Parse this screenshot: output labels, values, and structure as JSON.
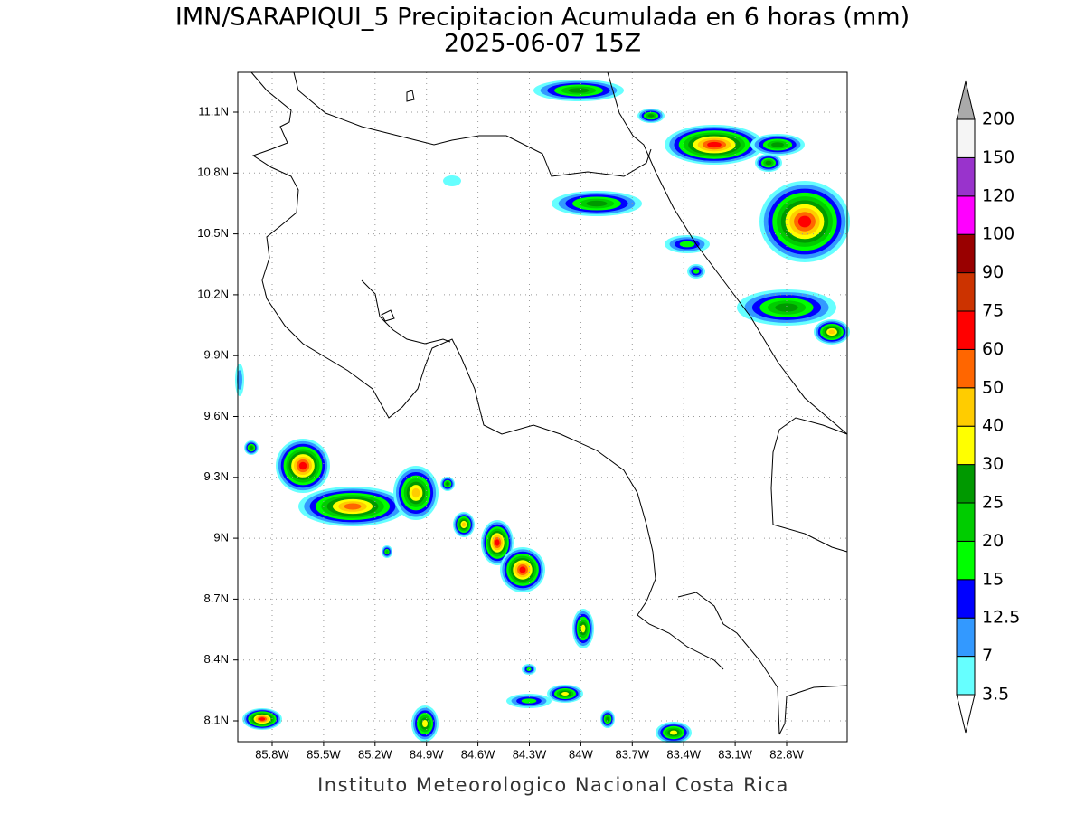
{
  "title": "IMN/SARAPIQUI_5 Precipitacion Acumulada en 6 horas (mm)",
  "subtitle": "2025-06-07 15Z",
  "lat_labels": [
    "11.1N",
    "10.8N",
    "10.5N",
    "10.2N",
    "9.9N",
    "9.6N",
    "9.3N",
    "9N",
    "8.7N",
    "8.4N",
    "8.1N"
  ],
  "lon_labels": [
    "85.8W",
    "85.5W",
    "85.2W",
    "84.9W",
    "84.6W",
    "84.3W",
    "84W",
    "83.7W",
    "83.4W",
    "83.1W",
    "82.8W"
  ],
  "colorbar": {
    "labels": [
      3.5,
      7,
      12.5,
      15,
      20,
      25,
      30,
      40,
      50,
      60,
      75,
      90,
      100,
      120,
      150,
      200
    ],
    "colors": [
      "#ffffff",
      "#66ffff",
      "#3399ff",
      "#0000ff",
      "#00ff00",
      "#00cc00",
      "#009900",
      "#ffff00",
      "#ffcc00",
      "#ff6600",
      "#ff0000",
      "#cc3300",
      "#990000",
      "#ff00ff",
      "#9933cc",
      "#f5f5f5",
      "#aaaaaa"
    ]
  },
  "footer": "Instituto Meteorologico Nacional Costa Rica"
}
